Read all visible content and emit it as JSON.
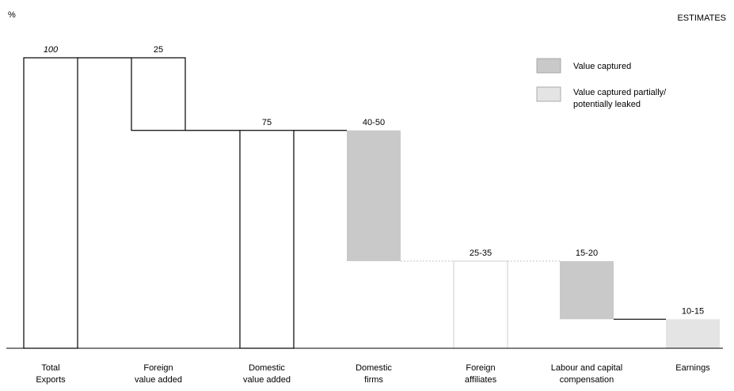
{
  "chart_data": {
    "type": "bar",
    "unit_label": "%",
    "note": "ESTIMATES",
    "ylim": [
      0,
      100
    ],
    "grid": false,
    "legend_position": "top-right",
    "colors": {
      "captured": "#c9c9c9",
      "partial": "#e4e4e4",
      "outline": "#000000"
    },
    "legend": [
      {
        "key": "captured",
        "label": "Value captured"
      },
      {
        "key": "partial",
        "label_lines": [
          "Value captured partially/",
          "potentially leaked"
        ]
      }
    ],
    "bars": [
      {
        "category_lines": [
          "Total",
          "Exports"
        ],
        "value_label": "100",
        "low": 0,
        "high": 100,
        "style": "outline"
      },
      {
        "category_lines": [
          "Foreign",
          "value added"
        ],
        "value_label": "25",
        "low": 75,
        "high": 100,
        "style": "outline"
      },
      {
        "category_lines": [
          "Domestic",
          "value added"
        ],
        "value_label": "75",
        "low": 0,
        "high": 75,
        "style": "outline"
      },
      {
        "category_lines": [
          "Domestic",
          "firms"
        ],
        "value_label": "40-50",
        "low": 30,
        "high": 75,
        "style": "captured"
      },
      {
        "category_lines": [
          "Foreign",
          "affiliates"
        ],
        "value_label": "25-35",
        "low": 0,
        "high": 30,
        "style": "outline-light"
      },
      {
        "category_lines": [
          "Labour and capital",
          "compensation"
        ],
        "value_label": "15-20",
        "low": 10,
        "high": 30,
        "style": "captured"
      },
      {
        "category_lines": [
          "Earnings"
        ],
        "value_label": "10-15",
        "low": 0,
        "high": 10,
        "style": "partial"
      }
    ]
  }
}
